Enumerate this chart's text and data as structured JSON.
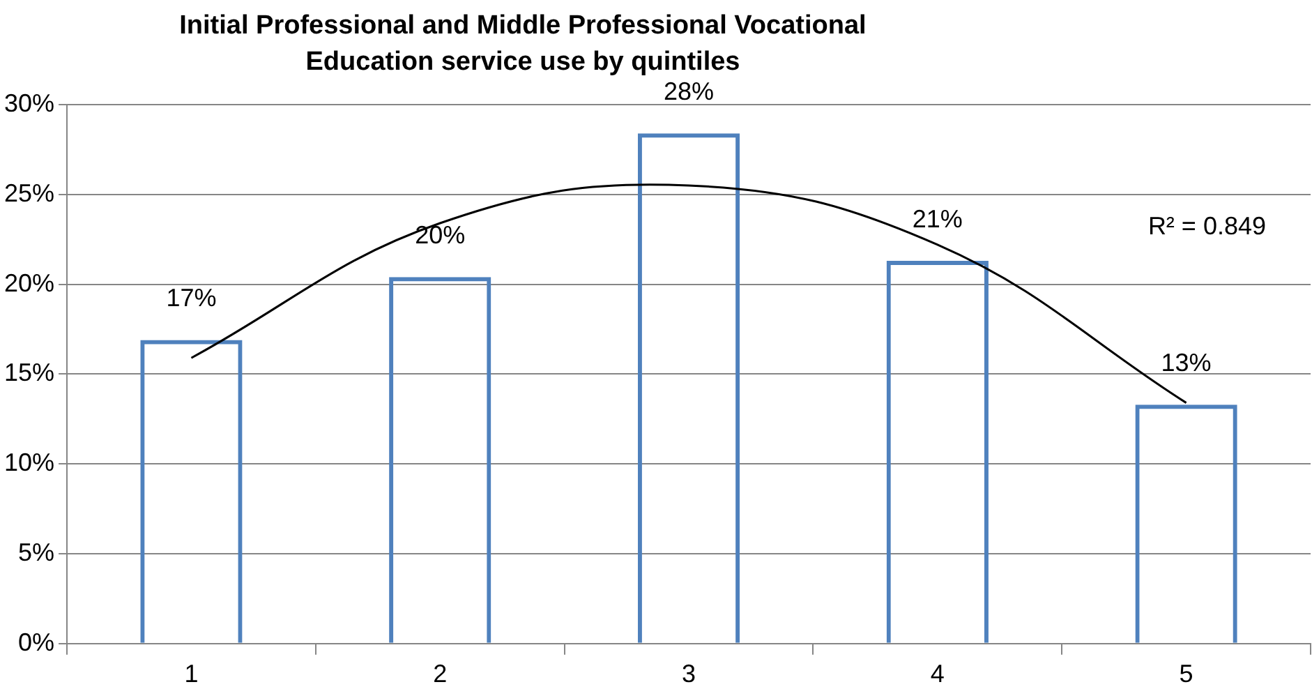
{
  "chart_data": {
    "type": "bar",
    "title": "Initial Professional and Middle Professional Vocational Education service use by quintiles",
    "categories": [
      "1",
      "2",
      "3",
      "4",
      "5"
    ],
    "series": [
      {
        "color": "#4f81bd",
        "values": [
          16.9,
          20.4,
          28.4,
          21.3,
          13.3
        ],
        "value_labels": [
          "17%",
          "20%",
          "28%",
          "21%",
          "13%"
        ]
      },
      {
        "type": "line",
        "color": "#000000",
        "values": [
          15.9,
          23.4,
          25.5,
          22.2,
          13.4
        ]
      }
    ],
    "ylim": [
      0,
      30
    ],
    "yticks": [
      {
        "value": 0,
        "label": "0%"
      },
      {
        "value": 5,
        "label": "5%"
      },
      {
        "value": 10,
        "label": "10%"
      },
      {
        "value": 15,
        "label": "15%"
      },
      {
        "value": 20,
        "label": "20%"
      },
      {
        "value": 25,
        "label": "25%"
      },
      {
        "value": 30,
        "label": "30%"
      }
    ],
    "grid": "y",
    "legend": false,
    "marker": "none",
    "line_style": "solid",
    "annotations": [
      "R² = 0.849"
    ]
  }
}
